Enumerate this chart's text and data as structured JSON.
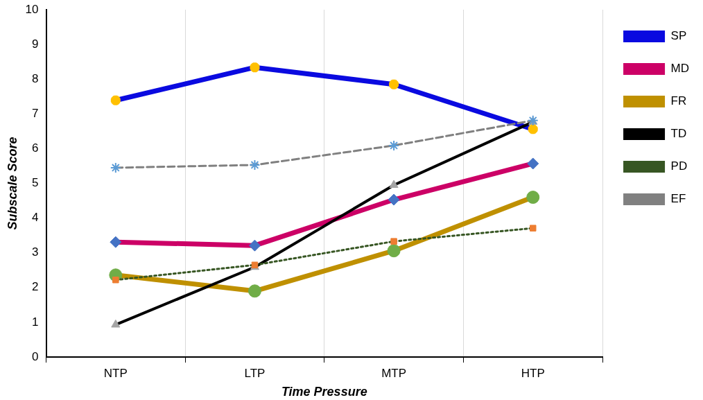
{
  "chart_data": {
    "type": "line",
    "xlabel": "Time Pressure",
    "ylabel": "Subscale Score",
    "categories": [
      "NTP",
      "LTP",
      "MTP",
      "HTP"
    ],
    "ylim": [
      0,
      10
    ],
    "yticks": [
      0,
      1,
      2,
      3,
      4,
      5,
      6,
      7,
      8,
      9,
      10
    ],
    "grid": "x",
    "legend": "right",
    "series": [
      {
        "name": "SP",
        "color": "#0a0ae0",
        "colors": [
          "#ffc000",
          "#ffc000",
          "#ffc000",
          "#ffc000"
        ],
        "marker": "cross",
        "line_style": "solid",
        "values": [
          7.39,
          8.34,
          7.85,
          6.56
        ]
      },
      {
        "name": "MD",
        "color": "#cc0066",
        "colors": [
          "#4472c4",
          "#4472c4",
          "#4472c4",
          "#4472c4"
        ],
        "marker": "diamond",
        "line_style": "solid",
        "values": [
          3.31,
          3.21,
          4.53,
          5.57
        ]
      },
      {
        "name": "FR",
        "color": "#bf9000",
        "colors": [
          "#70ad47",
          "#70ad47",
          "#70ad47",
          "#70ad47"
        ],
        "marker": "circle",
        "line_style": "solid",
        "values": [
          2.36,
          1.9,
          3.06,
          4.6
        ]
      },
      {
        "name": "TD",
        "color": "#000000",
        "colors": [
          "#a5a5a5",
          "#a5a5a5",
          "#a5a5a5",
          "#a5a5a5"
        ],
        "marker": "triangle",
        "line_style": "solid",
        "values": [
          0.93,
          2.59,
          4.95,
          6.77
        ]
      },
      {
        "name": "PD",
        "color": "#375623",
        "colors": [
          "#ed7d31",
          "#ed7d31",
          "#ed7d31",
          "#ed7d31"
        ],
        "marker": "square",
        "line_style": "dotted",
        "values": [
          2.22,
          2.65,
          3.33,
          3.71
        ]
      },
      {
        "name": "EF",
        "color": "#808080",
        "colors": [
          "#5b9bd5",
          "#5b9bd5",
          "#5b9bd5",
          "#5b9bd5"
        ],
        "marker": "cross",
        "line_style": "dashed",
        "values": [
          5.45,
          5.53,
          6.09,
          6.81
        ]
      }
    ]
  }
}
